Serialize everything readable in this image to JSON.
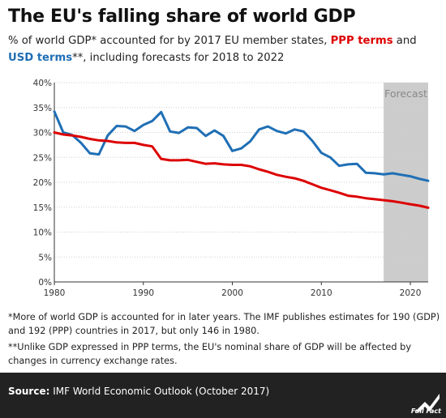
{
  "header": {
    "title": "The EU's falling share of world GDP",
    "subtitle_part1": "% of world GDP* accounted for by 2017 EU member states, ",
    "subtitle_ppp": "PPP terms",
    "subtitle_part2": " and ",
    "subtitle_usd": "USD terms",
    "subtitle_part3": "**, including forecasts for 2018 to 2022"
  },
  "notes": {
    "note1": "*More of world GDP is accounted for in later years. The IMF publishes estimates for 190 (GDP) and 192 (PPP) countries in 2017, but only 146 in 1980.",
    "note2": "**Unlike GDP expressed in PPP terms, the EU's nominal share of GDP will be affected by changes in currency exchange rates."
  },
  "footer": {
    "source_label": "Source:",
    "source_text": " IMF World Economic Outlook (October 2017)",
    "logo_text": "Full Fact"
  },
  "colors": {
    "ppp": "#dd0000",
    "usd": "#1f6fb5",
    "forecast_band": "#cccccc",
    "footer_bg": "#222222"
  },
  "chart_data": {
    "type": "line",
    "xlim": [
      1980,
      2022
    ],
    "ylim": [
      0,
      40
    ],
    "x_ticks": [
      1980,
      1990,
      2000,
      2010,
      2020
    ],
    "y_ticks": [
      0,
      5,
      10,
      15,
      20,
      25,
      30,
      35,
      40
    ],
    "y_tick_labels": [
      "0%",
      "5%",
      "10%",
      "15%",
      "20%",
      "25%",
      "30%",
      "35%",
      "40%"
    ],
    "forecast": {
      "label": "Forecast",
      "start": 2017,
      "end": 2022
    },
    "x": [
      1980,
      1981,
      1982,
      1983,
      1984,
      1985,
      1986,
      1987,
      1988,
      1989,
      1990,
      1991,
      1992,
      1993,
      1994,
      1995,
      1996,
      1997,
      1998,
      1999,
      2000,
      2001,
      2002,
      2003,
      2004,
      2005,
      2006,
      2007,
      2008,
      2009,
      2010,
      2011,
      2012,
      2013,
      2014,
      2015,
      2016,
      2017,
      2018,
      2019,
      2020,
      2021,
      2022
    ],
    "series": [
      {
        "name": "USD terms",
        "color": "#1f6fb5",
        "values": [
          34.2,
          30.0,
          29.5,
          27.9,
          25.8,
          25.6,
          29.4,
          31.3,
          31.2,
          30.3,
          31.5,
          32.3,
          34.1,
          30.2,
          29.9,
          31.0,
          30.9,
          29.3,
          30.4,
          29.3,
          26.3,
          26.8,
          28.2,
          30.6,
          31.2,
          30.3,
          29.8,
          30.6,
          30.2,
          28.3,
          25.9,
          25.0,
          23.3,
          23.6,
          23.7,
          21.9,
          21.8,
          21.6,
          21.8,
          21.5,
          21.2,
          20.7,
          20.3
        ]
      },
      {
        "name": "PPP terms",
        "color": "#dd0000",
        "values": [
          30.0,
          29.6,
          29.4,
          29.1,
          28.7,
          28.4,
          28.3,
          28.0,
          27.9,
          27.9,
          27.5,
          27.2,
          24.7,
          24.4,
          24.4,
          24.5,
          24.1,
          23.7,
          23.8,
          23.6,
          23.5,
          23.5,
          23.2,
          22.6,
          22.1,
          21.5,
          21.1,
          20.8,
          20.3,
          19.6,
          18.9,
          18.4,
          17.9,
          17.3,
          17.1,
          16.8,
          16.6,
          16.4,
          16.2,
          15.9,
          15.6,
          15.3,
          14.9
        ]
      }
    ]
  }
}
